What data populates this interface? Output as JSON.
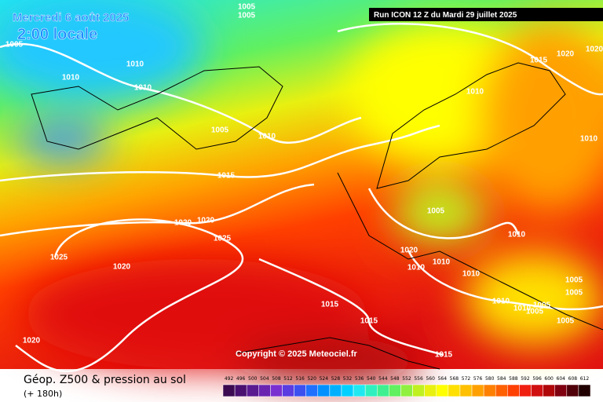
{
  "header": {
    "date": "Mercredi 6 août 2025",
    "time": "2:00 locale",
    "run": "Run ICON 12 Z du Mardi 29 juillet 2025",
    "copyright": "Copyright © 2025 Meteociel.fr"
  },
  "footer": {
    "title": "Géop. Z500 & pression au sol",
    "lead": "(+ 180h)"
  },
  "colorbar": {
    "labels": [
      492,
      496,
      500,
      504,
      508,
      512,
      516,
      520,
      524,
      528,
      532,
      536,
      540,
      544,
      548,
      552,
      556,
      560,
      564,
      568,
      572,
      576,
      580,
      584,
      588,
      592,
      596,
      600,
      604,
      608,
      612
    ],
    "colors": [
      "#3c0a50",
      "#4a1070",
      "#5a1a90",
      "#6a24b0",
      "#7a30d0",
      "#5a3ce0",
      "#3c50f0",
      "#2070ff",
      "#0090ff",
      "#00b0ff",
      "#00d0ff",
      "#20e8f0",
      "#30f0c0",
      "#40f090",
      "#60f060",
      "#90f040",
      "#c0f020",
      "#e8f010",
      "#ffff00",
      "#ffe000",
      "#ffc000",
      "#ffa000",
      "#ff8000",
      "#ff6000",
      "#ff4000",
      "#f02010",
      "#d01010",
      "#b00808",
      "#800010",
      "#500008",
      "#200000"
    ]
  },
  "isobars": {
    "labels": [
      1005,
      1005,
      1005,
      1010,
      1010,
      1010,
      1005,
      1010,
      1015,
      1015,
      1020,
      1020,
      1010,
      1010,
      1005,
      1020,
      1020,
      1025,
      1025,
      1020,
      1010,
      1020,
      1010,
      1010,
      1010,
      1005,
      1005,
      1010,
      1010,
      1005,
      1005,
      1005,
      1015,
      1015,
      1020,
      1015
    ]
  }
}
